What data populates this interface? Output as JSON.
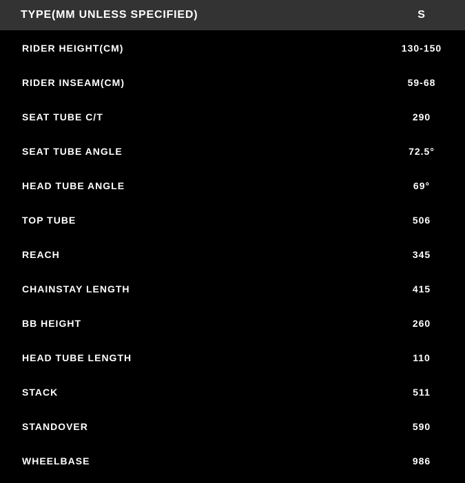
{
  "header": {
    "type": "TYPE(MM UNLESS SPECIFIED)",
    "size": "S"
  },
  "rows": [
    {
      "label": "RIDER HEIGHT(CM)",
      "value": "130-150"
    },
    {
      "label": "RIDER INSEAM(CM)",
      "value": "59-68"
    },
    {
      "label": "SEAT TUBE C/T",
      "value": "290"
    },
    {
      "label": "SEAT TUBE ANGLE",
      "value": "72.5°"
    },
    {
      "label": "HEAD TUBE ANGLE",
      "value": "69°"
    },
    {
      "label": "TOP TUBE",
      "value": "506"
    },
    {
      "label": "REACH",
      "value": "345"
    },
    {
      "label": "CHAINSTAY LENGTH",
      "value": "415"
    },
    {
      "label": "BB HEIGHT",
      "value": "260"
    },
    {
      "label": "HEAD TUBE LENGTH",
      "value": "110"
    },
    {
      "label": "STACK",
      "value": "511"
    },
    {
      "label": "STANDOVER",
      "value": "590"
    },
    {
      "label": "WHEELBASE",
      "value": "986"
    }
  ]
}
